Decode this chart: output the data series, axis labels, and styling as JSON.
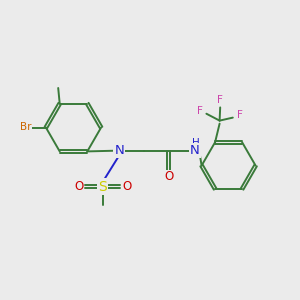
{
  "background_color": "#ebebeb",
  "bond_color": "#3a7a3a",
  "N_color": "#2222cc",
  "O_color": "#cc0000",
  "S_color": "#cccc00",
  "Br_color": "#cc6600",
  "F_color": "#cc44aa",
  "lw": 1.4,
  "fs": 8.5,
  "fs_small": 7.5,
  "xlim": [
    0,
    10
  ],
  "ylim": [
    0,
    10
  ]
}
